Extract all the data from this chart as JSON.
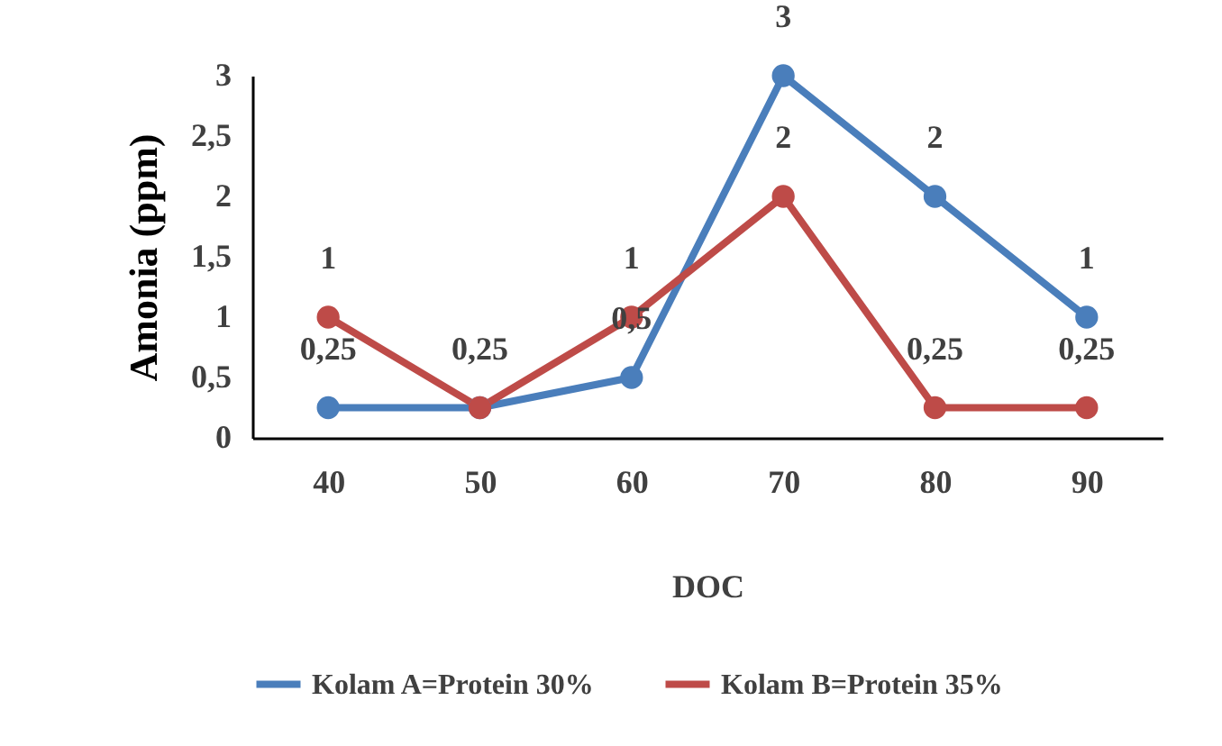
{
  "chart_data": {
    "type": "line",
    "xlabel": "DOC",
    "ylabel": "Amonia (ppm)",
    "categories": [
      "40",
      "50",
      "60",
      "70",
      "80",
      "90"
    ],
    "series": [
      {
        "name": "Kolam A=Protein 30%",
        "color": "#4a7ebb",
        "values": [
          0.25,
          0.25,
          0.5,
          3,
          2,
          1
        ],
        "value_labels": [
          "0,25",
          "0,25",
          "0,5",
          "3",
          "2",
          "1"
        ]
      },
      {
        "name": "Kolam B=Protein 35%",
        "color": "#be4b48",
        "values": [
          1,
          0.25,
          1,
          2,
          0.25,
          0.25
        ],
        "value_labels": [
          "1",
          null,
          "1",
          "2",
          "0,25",
          "0,25"
        ]
      }
    ],
    "ylim": [
      0,
      3
    ],
    "yticks": [
      0,
      {
        "value": 0.5,
        "label": "0,5"
      },
      1,
      {
        "value": 1.5,
        "label": "1,5"
      },
      2,
      {
        "value": 2.5,
        "label": "2,5"
      },
      3
    ],
    "grid": false,
    "legend": "bottom",
    "marker": "circle",
    "line_style": "solid"
  }
}
